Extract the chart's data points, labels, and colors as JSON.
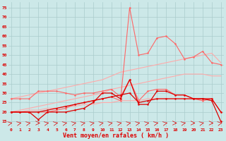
{
  "x": [
    0,
    1,
    2,
    3,
    4,
    5,
    6,
    7,
    8,
    9,
    10,
    11,
    12,
    13,
    14,
    15,
    16,
    17,
    18,
    19,
    20,
    21,
    22,
    23
  ],
  "line_dark1": [
    20,
    20,
    20,
    16,
    20,
    20,
    20,
    21,
    22,
    25,
    30,
    30,
    27,
    37,
    24,
    24,
    31,
    31,
    29,
    29,
    27,
    27,
    26,
    15
  ],
  "line_dark2": [
    20,
    20,
    20,
    20,
    21,
    22,
    23,
    24,
    25,
    26,
    27,
    28,
    29,
    30,
    25,
    26,
    27,
    27,
    27,
    27,
    27,
    27,
    27,
    20
  ],
  "line_med1": [
    27,
    27,
    27,
    31,
    31,
    31,
    30,
    29,
    30,
    30,
    31,
    32,
    28,
    37,
    26,
    31,
    32,
    32,
    29,
    29,
    27,
    26,
    27,
    20
  ],
  "line_med2": [
    20,
    20,
    20,
    20,
    20,
    21,
    22,
    24,
    25,
    26,
    27,
    28,
    26,
    75,
    50,
    51,
    59,
    60,
    56,
    48,
    49,
    52,
    46,
    45
  ],
  "line_smooth1": [
    20,
    21,
    22,
    23,
    24,
    25,
    26,
    27,
    28,
    29,
    30,
    32,
    33,
    34,
    35,
    36,
    37,
    38,
    39,
    40,
    40,
    40,
    39,
    39
  ],
  "line_smooth2": [
    27,
    28,
    29,
    30,
    31,
    32,
    33,
    34,
    35,
    36,
    37,
    39,
    41,
    42,
    43,
    44,
    45,
    46,
    47,
    48,
    49,
    50,
    51,
    46
  ],
  "line_smooth3": [
    20,
    20,
    21,
    21,
    22,
    22,
    23,
    23,
    24,
    24,
    25,
    25,
    26,
    26,
    26,
    27,
    27,
    27,
    27,
    27,
    27,
    27,
    27,
    20
  ],
  "bg_color": "#cce8e8",
  "grid_color": "#aacccc",
  "color_dark": "#dd0000",
  "color_med": "#ff6666",
  "color_light": "#ffaaaa",
  "xlabel": "Vent moyen/en rafales ( km/h )",
  "yticks": [
    15,
    20,
    25,
    30,
    35,
    40,
    45,
    50,
    55,
    60,
    65,
    70,
    75
  ],
  "ylim": [
    12,
    78
  ],
  "xlim": [
    -0.3,
    23.3
  ],
  "arrow_angles": [
    45,
    45,
    45,
    0,
    45,
    45,
    45,
    45,
    45,
    45,
    45,
    45,
    45,
    45,
    45,
    45,
    45,
    45,
    0,
    45,
    0,
    45,
    0,
    45
  ]
}
